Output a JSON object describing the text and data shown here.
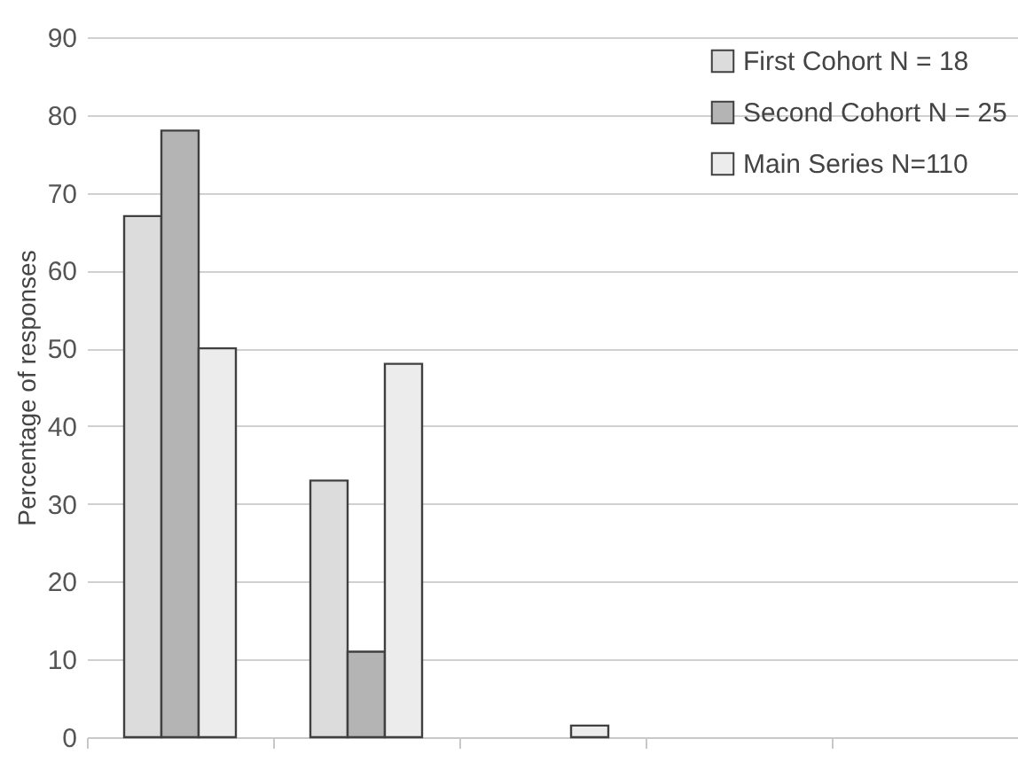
{
  "chart_data": {
    "type": "bar",
    "ylabel": "Percentage of responses",
    "categories": [
      null,
      null,
      null,
      null,
      null
    ],
    "series": [
      {
        "name": "First Cohort N = 18",
        "color": "#dcdcdc",
        "values": [
          67,
          33,
          null,
          null,
          null
        ]
      },
      {
        "name": "Second Cohort N = 25",
        "color": "#b4b4b4",
        "values": [
          78,
          11,
          null,
          null,
          null
        ]
      },
      {
        "name": "Main Series N=110",
        "color": "#ececec",
        "values": [
          50,
          48,
          1.5,
          null,
          null
        ]
      }
    ],
    "ylim": [
      0,
      90
    ],
    "yticks": [
      0,
      10,
      20,
      30,
      40,
      50,
      60,
      70,
      80,
      90
    ],
    "grid": "y",
    "legend": "top right"
  }
}
